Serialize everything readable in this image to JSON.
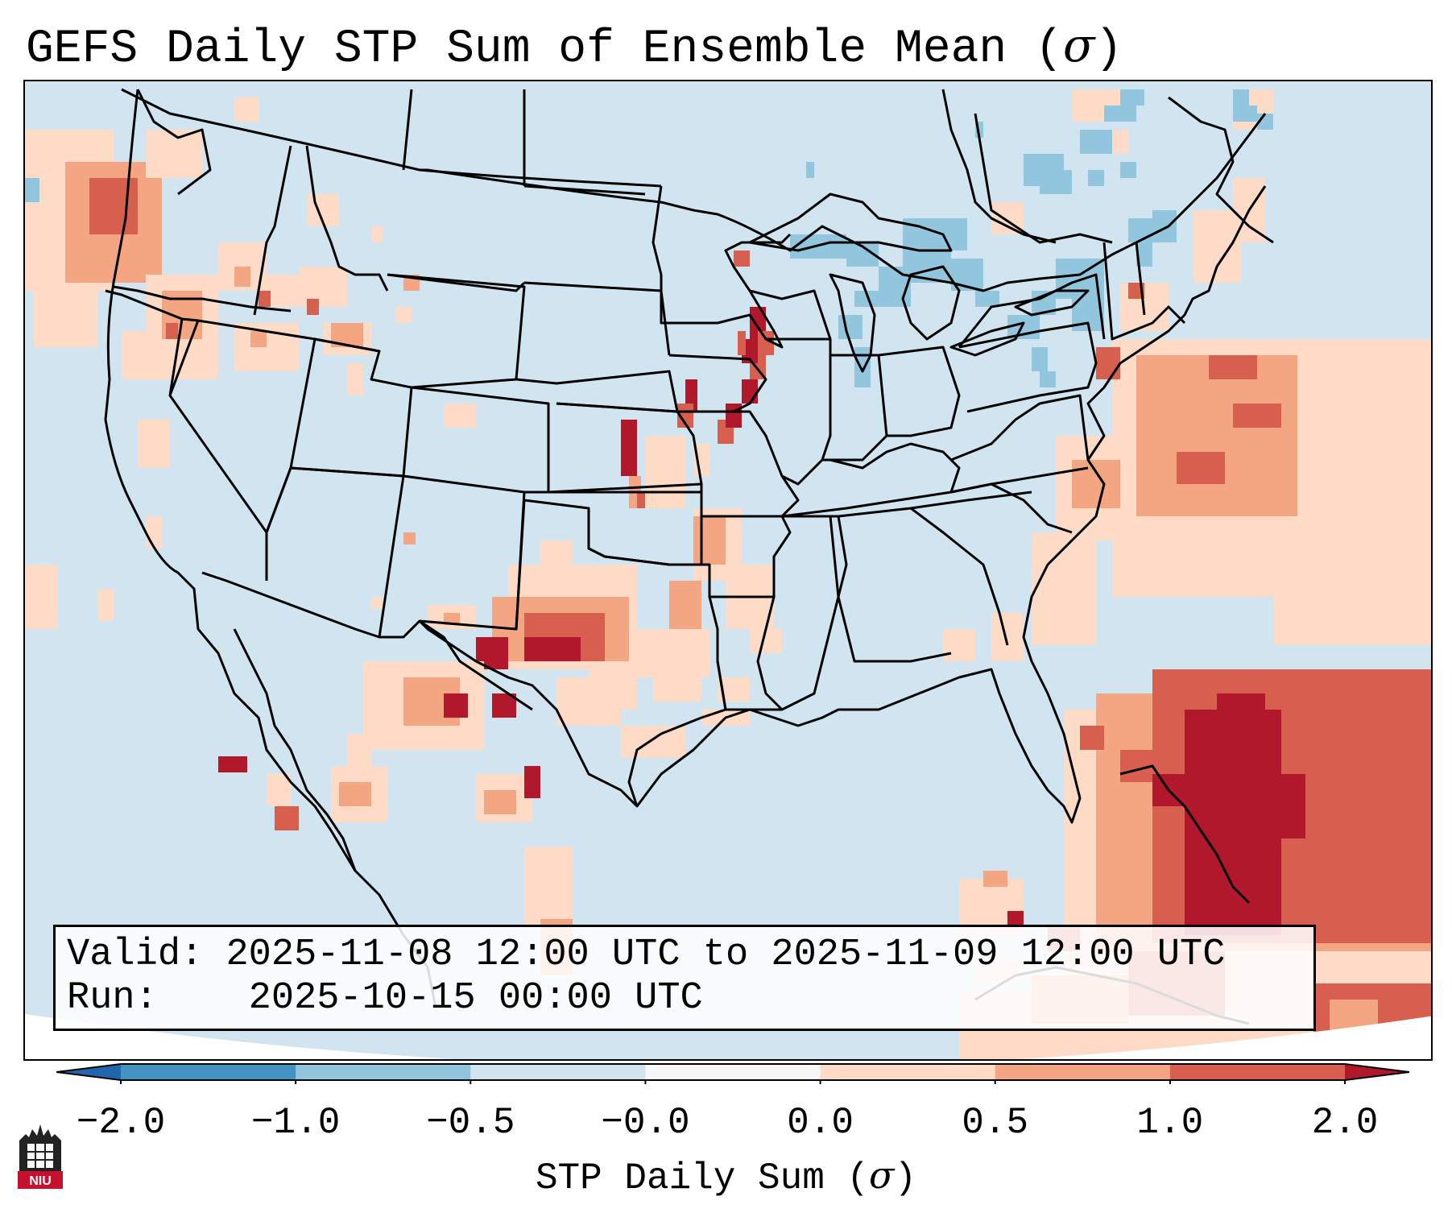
{
  "title": {
    "text": "GEFS Daily STP Sum of Ensemble Mean (",
    "symbol": "σ",
    "close": ")"
  },
  "info": {
    "valid_label": "Valid:",
    "valid_value": "2025-11-08 12:00 UTC to 2025-11-09 12:00 UTC",
    "run_label": "Run:",
    "run_value": "2025-10-15 00:00 UTC"
  },
  "colorbar": {
    "ticks": [
      "−2.0",
      "−1.0",
      "−0.5",
      "−0.0",
      "0.0",
      "0.5",
      "1.0",
      "2.0"
    ],
    "colors": [
      "#4393c3",
      "#92c5de",
      "#d1e5f0",
      "#f7f7f7",
      "#fddbc7",
      "#f4a582",
      "#d6604d"
    ],
    "under_color": "#2166ac",
    "over_color": "#b2182b",
    "label_text": "STP Daily Sum (",
    "label_symbol": "σ",
    "label_close": ")"
  },
  "map": {
    "background_color": "#d1e5f0",
    "outside_color": "#ffffff",
    "border_color": "#000000",
    "region": "CONUS"
  },
  "logo": {
    "text": "NIU",
    "color": "#c8102e"
  }
}
